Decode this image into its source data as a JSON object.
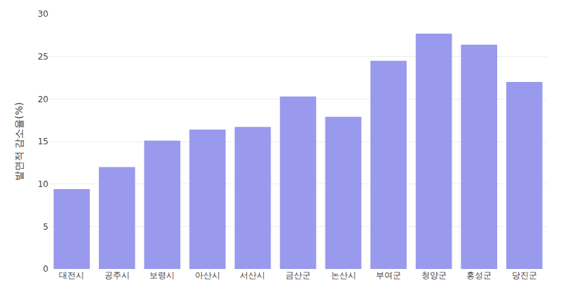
{
  "chart_data": {
    "type": "bar",
    "categories": [
      "대전시",
      "공주시",
      "보령시",
      "아산시",
      "서산시",
      "금산군",
      "논산시",
      "부여군",
      "청양군",
      "홍성군",
      "당진군"
    ],
    "values": [
      9.4,
      12.0,
      15.1,
      16.4,
      16.7,
      20.3,
      17.9,
      24.5,
      27.7,
      26.4,
      22.0
    ],
    "color": "#9999ee",
    "ylabel": "밭면적 감소율(%)",
    "ylim": [
      0,
      30
    ],
    "yticks": [
      0,
      5,
      10,
      15,
      20,
      25,
      30
    ],
    "grid": true
  }
}
